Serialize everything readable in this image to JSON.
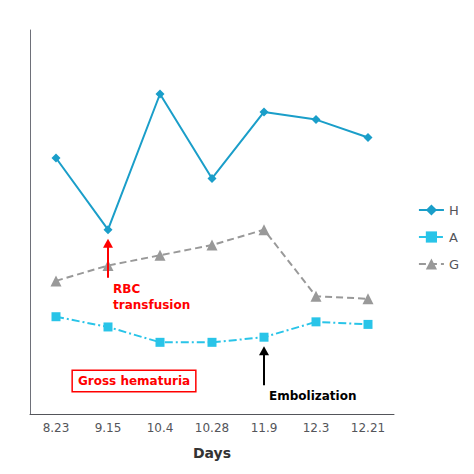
{
  "chart_data": {
    "type": "line",
    "xlabel": "Days",
    "categories": [
      "8.23",
      "9.15",
      "10.4",
      "10.28",
      "11.9",
      "12.3",
      "12.21"
    ],
    "series": [
      {
        "name": "H",
        "color": "#1A9EC9",
        "marker": "diamond",
        "line_style": "solid",
        "values": [
          10.0,
          7.2,
          12.5,
          9.2,
          11.8,
          11.5,
          10.8
        ]
      },
      {
        "name": "A",
        "color": "#29C4E8",
        "marker": "square",
        "line_style": "dashdot",
        "values": [
          3.8,
          3.4,
          2.8,
          2.8,
          3.0,
          3.6,
          3.5
        ]
      },
      {
        "name": "G",
        "color": "#999999",
        "marker": "triangle",
        "line_style": "dashed",
        "values": [
          5.2,
          5.8,
          6.2,
          6.6,
          7.2,
          4.6,
          4.5
        ]
      }
    ],
    "ylim": [
      0,
      15
    ],
    "tick_labels": "x",
    "grid": false,
    "legend": "right",
    "annotations": [
      {
        "text": "RBC\ntransfusion",
        "x": "9.15",
        "series": "H",
        "color": "red"
      },
      {
        "text": "Embolization",
        "x": "11.9",
        "series": "A",
        "color": "black"
      },
      {
        "text": "Gross hematuria",
        "color": "red"
      }
    ]
  }
}
